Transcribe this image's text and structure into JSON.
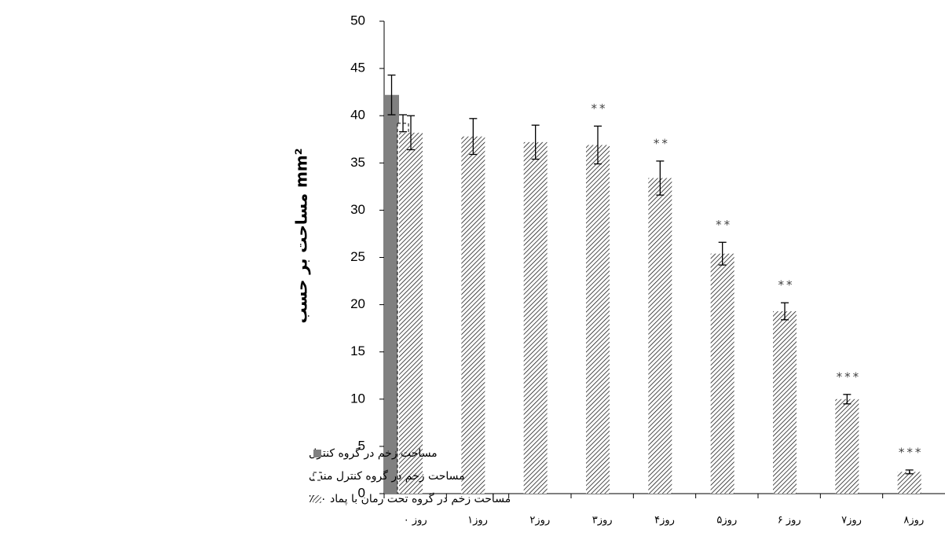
{
  "chart_data": {
    "type": "bar",
    "y_label": "مساحت بر حسب mm²",
    "categories": [
      "روز ۰",
      "روز۱",
      "روز۲",
      "روز۳",
      "روز۴",
      "روز۵",
      "روز ۶",
      "روز۷",
      "روز۸"
    ],
    "series": [
      {
        "name": "مساحت زخم در گروه کنترل",
        "color": "#808080",
        "style": "solid",
        "values": [
          42.2,
          null,
          null,
          null,
          null,
          null,
          null,
          null,
          null
        ],
        "errors": [
          2.1,
          null,
          null,
          null,
          null,
          null,
          null,
          null,
          null
        ]
      },
      {
        "name": "مساحت زخم در گروه کنترل منفی",
        "color": "#000000",
        "style": "dashed",
        "values": [
          39.2,
          null,
          null,
          null,
          null,
          null,
          null,
          null,
          null
        ],
        "errors": [
          0.9,
          null,
          null,
          null,
          null,
          null,
          null,
          null,
          null
        ]
      },
      {
        "name": "مساحت زخم در گروه  تحت رمان با پماد ۶۰٪",
        "color": "#000000",
        "style": "hatch",
        "values": [
          38.2,
          37.8,
          37.2,
          36.9,
          33.4,
          25.4,
          19.3,
          10.0,
          2.3
        ],
        "errors": [
          1.8,
          1.9,
          1.8,
          2.0,
          1.8,
          1.2,
          0.9,
          0.5,
          0.2
        ],
        "significance": [
          null,
          null,
          null,
          "**",
          "**",
          "**",
          "**",
          "***",
          "***"
        ]
      }
    ],
    "ylim": [
      0,
      50
    ],
    "yticks": [
      0,
      5,
      10,
      15,
      20,
      25,
      30,
      35,
      40,
      45,
      50
    ],
    "grid": false
  }
}
